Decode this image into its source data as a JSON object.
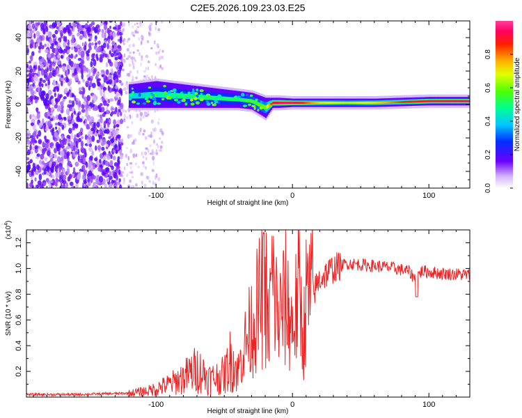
{
  "title": "C2E5.2026.109.23.03.E25",
  "chart_data": [
    {
      "type": "heatmap",
      "xlabel": "Height of straight line (km)",
      "ylabel": "Frequency (Hz)",
      "xlim": [
        -195,
        130
      ],
      "ylim": [
        -50,
        50
      ],
      "xticks": [
        -100,
        0,
        100
      ],
      "xtick_labels": [
        "-100",
        "0",
        "100"
      ],
      "yticks": [
        40,
        20,
        0,
        -20,
        -40
      ],
      "ytick_labels": [
        "40",
        "20",
        "0",
        "-20",
        "-40"
      ],
      "signal_track": {
        "x": [
          -120,
          -100,
          -80,
          -60,
          -40,
          -30,
          -20,
          -15,
          -10,
          0,
          20,
          40,
          60,
          80,
          100,
          130
        ],
        "center_hz": [
          5,
          6,
          5,
          4,
          3,
          2,
          -2,
          1,
          1,
          1,
          1,
          1,
          1,
          1.5,
          2,
          2
        ],
        "halfwidth_hz": [
          7,
          8,
          7,
          6,
          5,
          5,
          6,
          3,
          3,
          2.5,
          2.5,
          2.5,
          2.5,
          2.5,
          2.5,
          2.5
        ],
        "peak_amplitude": [
          0.4,
          0.45,
          0.5,
          0.5,
          0.5,
          0.55,
          0.6,
          0.9,
          0.95,
          0.95,
          0.7,
          0.65,
          0.7,
          0.85,
          0.9,
          0.95
        ]
      },
      "noise_region_end_km": -125,
      "colorbar": {
        "label": "Normalized spectral amplitude",
        "range": [
          0.0,
          1.0
        ],
        "ticks": [
          0.0,
          0.2,
          0.4,
          0.6,
          0.8
        ],
        "tick_labels": [
          "0.0",
          "0.2",
          "0.4",
          "0.6",
          "0.8"
        ]
      }
    },
    {
      "type": "line",
      "exponent_label": "(x10",
      "exponent_power": "4",
      "exponent_close": ")",
      "xlabel": "Height of straight line (km)",
      "ylabel": "SNR (10 * v/v)",
      "xlim": [
        -195,
        130
      ],
      "ylim": [
        0,
        1.3
      ],
      "xticks": [
        -100,
        0,
        100
      ],
      "xtick_labels": [
        "-100",
        "0",
        "100"
      ],
      "yticks": [
        0.2,
        0.4,
        0.6,
        0.8,
        1.0,
        1.2
      ],
      "ytick_labels": [
        "0.2",
        "0.4",
        "0.6",
        "0.8",
        "1.0",
        "1.2"
      ],
      "series": [
        {
          "name": "SNR",
          "color": "#ee2222",
          "x": [
            -195,
            -160,
            -140,
            -120,
            -105,
            -90,
            -80,
            -70,
            -60,
            -50,
            -45,
            -40,
            -35,
            -30,
            -25,
            -20,
            -18,
            -15,
            -10,
            -5,
            0,
            5,
            8,
            10,
            15,
            20,
            30,
            40,
            50,
            60,
            70,
            80,
            85,
            90,
            92,
            95,
            110,
            130
          ],
          "y": [
            0.02,
            0.02,
            0.025,
            0.03,
            0.05,
            0.1,
            0.15,
            0.22,
            0.14,
            0.17,
            0.3,
            0.2,
            0.4,
            0.55,
            0.7,
            0.85,
            0.5,
            0.9,
            0.6,
            0.75,
            0.55,
            0.8,
            0.45,
            0.75,
            0.8,
            0.92,
            1.0,
            1.04,
            1.03,
            1.02,
            1.01,
            0.99,
            0.98,
            0.92,
            0.95,
            0.98,
            0.96,
            0.95
          ]
        }
      ]
    }
  ]
}
